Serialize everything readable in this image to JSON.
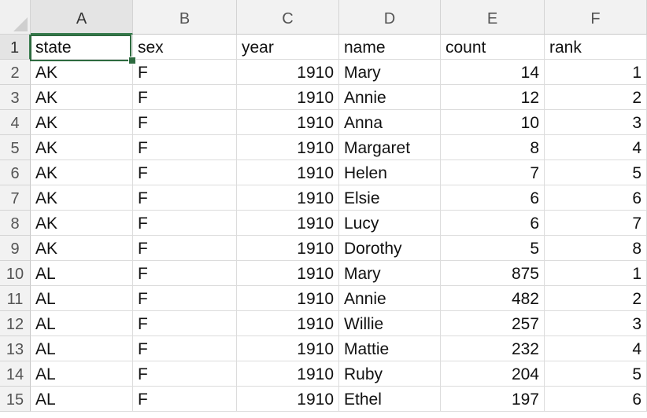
{
  "columns": [
    "A",
    "B",
    "C",
    "D",
    "E",
    "F"
  ],
  "row_numbers": [
    "1",
    "2",
    "3",
    "4",
    "5",
    "6",
    "7",
    "8",
    "9",
    "10",
    "11",
    "12",
    "13",
    "14",
    "15"
  ],
  "header_row": {
    "a": "state",
    "b": "sex",
    "c": "year",
    "d": "name",
    "e": "count",
    "f": "rank"
  },
  "rows": [
    {
      "a": "AK",
      "b": "F",
      "c": "1910",
      "d": "Mary",
      "e": "14",
      "f": "1"
    },
    {
      "a": "AK",
      "b": "F",
      "c": "1910",
      "d": "Annie",
      "e": "12",
      "f": "2"
    },
    {
      "a": "AK",
      "b": "F",
      "c": "1910",
      "d": "Anna",
      "e": "10",
      "f": "3"
    },
    {
      "a": "AK",
      "b": "F",
      "c": "1910",
      "d": "Margaret",
      "e": "8",
      "f": "4"
    },
    {
      "a": "AK",
      "b": "F",
      "c": "1910",
      "d": "Helen",
      "e": "7",
      "f": "5"
    },
    {
      "a": "AK",
      "b": "F",
      "c": "1910",
      "d": "Elsie",
      "e": "6",
      "f": "6"
    },
    {
      "a": "AK",
      "b": "F",
      "c": "1910",
      "d": "Lucy",
      "e": "6",
      "f": "7"
    },
    {
      "a": "AK",
      "b": "F",
      "c": "1910",
      "d": "Dorothy",
      "e": "5",
      "f": "8"
    },
    {
      "a": "AL",
      "b": "F",
      "c": "1910",
      "d": "Mary",
      "e": "875",
      "f": "1"
    },
    {
      "a": "AL",
      "b": "F",
      "c": "1910",
      "d": "Annie",
      "e": "482",
      "f": "2"
    },
    {
      "a": "AL",
      "b": "F",
      "c": "1910",
      "d": "Willie",
      "e": "257",
      "f": "3"
    },
    {
      "a": "AL",
      "b": "F",
      "c": "1910",
      "d": "Mattie",
      "e": "232",
      "f": "4"
    },
    {
      "a": "AL",
      "b": "F",
      "c": "1910",
      "d": "Ruby",
      "e": "204",
      "f": "5"
    },
    {
      "a": "AL",
      "b": "F",
      "c": "1910",
      "d": "Ethel",
      "e": "197",
      "f": "6"
    }
  ],
  "selected_cell": "A1",
  "colors": {
    "selection": "#2e6b40",
    "header_bg": "#f2f2f2"
  }
}
